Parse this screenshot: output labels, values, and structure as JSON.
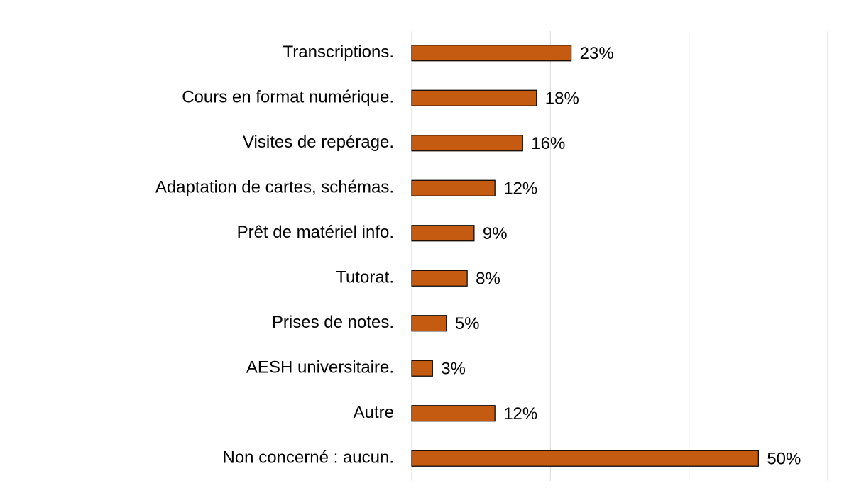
{
  "chart_data": {
    "type": "bar",
    "orientation": "horizontal",
    "categories": [
      "Transcriptions.",
      "Cours en format numérique.",
      "Visites de repérage.",
      "Adaptation de cartes, schémas.",
      "Prêt de matériel info.",
      "Tutorat.",
      "Prises de notes.",
      "AESH universitaire.",
      "Autre",
      "Non concerné : aucun."
    ],
    "values": [
      23,
      18,
      16,
      12,
      9,
      8,
      5,
      3,
      12,
      50
    ],
    "value_labels": [
      "23%",
      "18%",
      "16%",
      "12%",
      "9%",
      "8%",
      "5%",
      "3%",
      "12%",
      "50%"
    ],
    "color": "#c55a11",
    "xlim": [
      0,
      60
    ],
    "xticks": [
      0,
      20,
      40,
      60
    ],
    "grid": true
  }
}
